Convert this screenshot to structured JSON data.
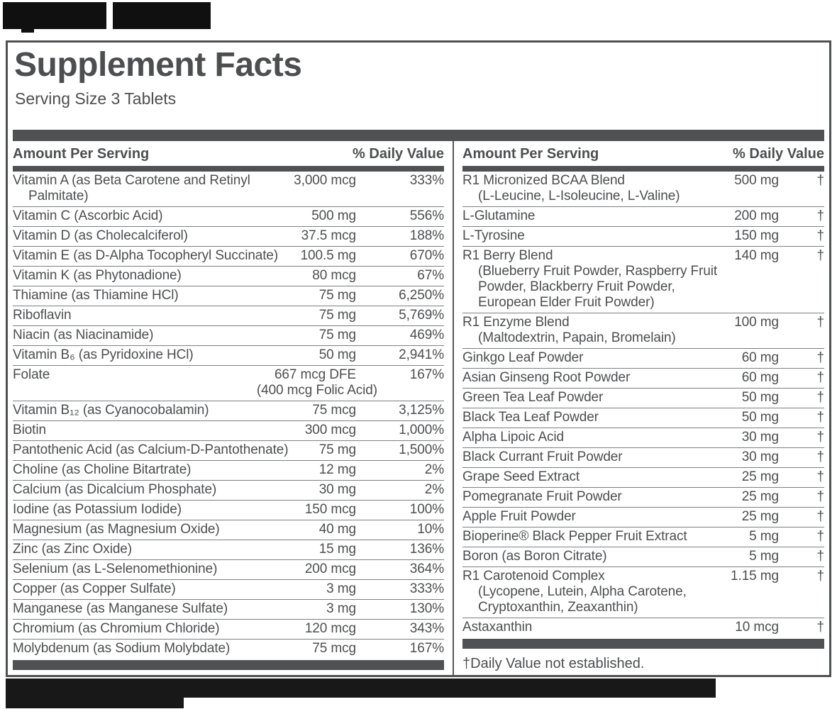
{
  "colors": {
    "panel_accent": "#4f5153",
    "text": "#4c4e50",
    "row_divider": "#7d7f82",
    "redaction": "#141414"
  },
  "panel": {
    "title": "Supplement Facts",
    "serving_size": "Serving Size 3 Tablets",
    "footnote": "†Daily Value not established.",
    "left": {
      "header_amount": "Amount Per Serving",
      "header_dv": "% Daily Value",
      "rows": [
        {
          "name": "Vitamin A (as Beta Carotene and Retinyl",
          "sub": [
            "Palmitate)"
          ],
          "amt": "3,000 mcg",
          "dv": "333%"
        },
        {
          "name": "Vitamin C (Ascorbic Acid)",
          "amt": "500 mg",
          "dv": "556%"
        },
        {
          "name": "Vitamin D (as Cholecalciferol)",
          "amt": "37.5 mcg",
          "dv": "188%"
        },
        {
          "name": "Vitamin E (as D-Alpha Tocopheryl Succinate)",
          "amt": "100.5 mg",
          "dv": "670%"
        },
        {
          "name": "Vitamin K (as Phytonadione)",
          "amt": "80 mcg",
          "dv": "67%"
        },
        {
          "name": "Thiamine (as Thiamine HCl)",
          "amt": "75 mg",
          "dv": "6,250%"
        },
        {
          "name": "Riboflavin",
          "amt": "75 mg",
          "dv": "5,769%"
        },
        {
          "name": "Niacin (as Niacinamide)",
          "amt": "75 mg",
          "dv": "469%"
        },
        {
          "name": "Vitamin B₆ (as Pyridoxine HCl)",
          "amt": "50 mg",
          "dv": "2,941%"
        },
        {
          "name": "Folate",
          "amt": "667 mcg DFE",
          "amt2": "(400 mcg Folic Acid)",
          "dv": "167%"
        },
        {
          "name": "Vitamin B₁₂ (as Cyanocobalamin)",
          "amt": "75 mcg",
          "dv": "3,125%"
        },
        {
          "name": "Biotin",
          "amt": "300 mcg",
          "dv": "1,000%"
        },
        {
          "name": "Pantothenic Acid (as Calcium-D-Pantothenate)",
          "amt": "75 mg",
          "dv": "1,500%"
        },
        {
          "name": "Choline (as Choline Bitartrate)",
          "amt": "12 mg",
          "dv": "2%"
        },
        {
          "name": "Calcium (as Dicalcium Phosphate)",
          "amt": "30 mg",
          "dv": "2%"
        },
        {
          "name": "Iodine (as Potassium Iodide)",
          "amt": "150 mcg",
          "dv": "100%"
        },
        {
          "name": "Magnesium (as Magnesium Oxide)",
          "amt": "40 mg",
          "dv": "10%"
        },
        {
          "name": "Zinc (as Zinc Oxide)",
          "amt": "15 mg",
          "dv": "136%"
        },
        {
          "name": "Selenium (as L-Selenomethionine)",
          "amt": "200 mcg",
          "dv": "364%"
        },
        {
          "name": "Copper (as Copper Sulfate)",
          "amt": "3 mg",
          "dv": "333%"
        },
        {
          "name": "Manganese (as Manganese Sulfate)",
          "amt": "3 mg",
          "dv": "130%"
        },
        {
          "name": "Chromium (as Chromium Chloride)",
          "amt": "120 mcg",
          "dv": "343%"
        },
        {
          "name": "Molybdenum (as Sodium Molybdate)",
          "amt": "75 mcg",
          "dv": "167%"
        }
      ]
    },
    "right": {
      "header_amount": "Amount Per Serving",
      "header_dv": "% Daily Value",
      "rows": [
        {
          "name": "R1 Micronized BCAA Blend",
          "sub": [
            "(L-Leucine, L-Isoleucine, L-Valine)"
          ],
          "amt": "500 mg",
          "dv": "†"
        },
        {
          "name": "L-Glutamine",
          "amt": "200 mg",
          "dv": "†"
        },
        {
          "name": "L-Tyrosine",
          "amt": "150 mg",
          "dv": "†"
        },
        {
          "name": "R1 Berry Blend",
          "sub": [
            "(Blueberry Fruit Powder, Raspberry Fruit",
            "Powder, Blackberry Fruit Powder,",
            "European Elder Fruit Powder)"
          ],
          "amt": "140 mg",
          "dv": "†"
        },
        {
          "name": "R1 Enzyme Blend",
          "sub": [
            "(Maltodextrin, Papain, Bromelain)"
          ],
          "amt": "100 mg",
          "dv": "†"
        },
        {
          "name": "Ginkgo Leaf Powder",
          "amt": "60 mg",
          "dv": "†"
        },
        {
          "name": "Asian Ginseng Root Powder",
          "amt": "60 mg",
          "dv": "†"
        },
        {
          "name": "Green Tea Leaf Powder",
          "amt": "50 mg",
          "dv": "†"
        },
        {
          "name": "Black Tea Leaf Powder",
          "amt": "50 mg",
          "dv": "†"
        },
        {
          "name": "Alpha Lipoic Acid",
          "amt": "30 mg",
          "dv": "†"
        },
        {
          "name": "Black Currant Fruit Powder",
          "amt": "30 mg",
          "dv": "†"
        },
        {
          "name": "Grape Seed Extract",
          "amt": "25 mg",
          "dv": "†"
        },
        {
          "name": "Pomegranate Fruit Powder",
          "amt": "25 mg",
          "dv": "†"
        },
        {
          "name": "Apple Fruit Powder",
          "amt": "25 mg",
          "dv": "†"
        },
        {
          "name": "Bioperine® Black Pepper Fruit Extract",
          "amt": "5 mg",
          "dv": "†"
        },
        {
          "name": "Boron (as Boron Citrate)",
          "amt": "5 mg",
          "dv": "†"
        },
        {
          "name": "R1 Carotenoid Complex",
          "sub": [
            "(Lycopene, Lutein, Alpha Carotene,",
            "Cryptoxanthin, Zeaxanthin)"
          ],
          "amt": "1.15 mg",
          "dv": "†"
        },
        {
          "name": "Astaxanthin",
          "amt": "10 mcg",
          "dv": "†"
        }
      ]
    }
  }
}
